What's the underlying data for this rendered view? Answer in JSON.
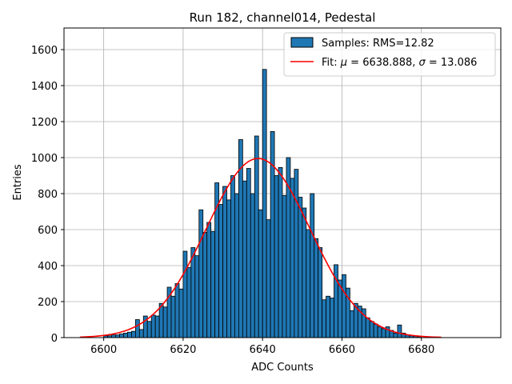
{
  "chart_data": {
    "type": "bar",
    "title": "Run 182, channel014, Pedestal",
    "xlabel": "ADC Counts",
    "ylabel": "Entries",
    "xlim": [
      6590,
      6700
    ],
    "ylim": [
      0,
      1720
    ],
    "xticks": [
      6600,
      6620,
      6640,
      6660,
      6680
    ],
    "yticks": [
      0,
      200,
      400,
      600,
      800,
      1000,
      1200,
      1400,
      1600
    ],
    "grid": true,
    "legend_position": "top-right",
    "colors": {
      "bars": "#1f77b4",
      "bar_edge": "#000000",
      "fit": "#ff0000",
      "grid": "#b0b0b0"
    },
    "series": [
      {
        "name": "Samples: RMS=12.82",
        "kind": "histogram",
        "bin_width": 1,
        "bins": [
          [
            6600,
            10
          ],
          [
            6601,
            10
          ],
          [
            6602,
            15
          ],
          [
            6603,
            15
          ],
          [
            6604,
            20
          ],
          [
            6605,
            25
          ],
          [
            6606,
            30
          ],
          [
            6607,
            35
          ],
          [
            6608,
            100
          ],
          [
            6609,
            45
          ],
          [
            6610,
            120
          ],
          [
            6611,
            90
          ],
          [
            6612,
            125
          ],
          [
            6613,
            120
          ],
          [
            6614,
            190
          ],
          [
            6615,
            170
          ],
          [
            6616,
            280
          ],
          [
            6617,
            230
          ],
          [
            6618,
            300
          ],
          [
            6619,
            270
          ],
          [
            6620,
            480
          ],
          [
            6621,
            390
          ],
          [
            6622,
            500
          ],
          [
            6623,
            455
          ],
          [
            6624,
            710
          ],
          [
            6625,
            585
          ],
          [
            6626,
            640
          ],
          [
            6627,
            590
          ],
          [
            6628,
            860
          ],
          [
            6629,
            740
          ],
          [
            6630,
            840
          ],
          [
            6631,
            765
          ],
          [
            6632,
            900
          ],
          [
            6633,
            800
          ],
          [
            6634,
            1100
          ],
          [
            6635,
            870
          ],
          [
            6636,
            940
          ],
          [
            6637,
            800
          ],
          [
            6638,
            1120
          ],
          [
            6639,
            710
          ],
          [
            6640,
            1490
          ],
          [
            6641,
            655
          ],
          [
            6642,
            1145
          ],
          [
            6643,
            900
          ],
          [
            6644,
            945
          ],
          [
            6645,
            790
          ],
          [
            6646,
            1000
          ],
          [
            6647,
            885
          ],
          [
            6648,
            935
          ],
          [
            6649,
            780
          ],
          [
            6650,
            720
          ],
          [
            6651,
            600
          ],
          [
            6652,
            800
          ],
          [
            6653,
            550
          ],
          [
            6654,
            500
          ],
          [
            6655,
            210
          ],
          [
            6656,
            230
          ],
          [
            6657,
            220
          ],
          [
            6658,
            405
          ],
          [
            6659,
            320
          ],
          [
            6660,
            350
          ],
          [
            6661,
            275
          ],
          [
            6662,
            150
          ],
          [
            6663,
            190
          ],
          [
            6664,
            175
          ],
          [
            6665,
            160
          ],
          [
            6666,
            110
          ],
          [
            6667,
            90
          ],
          [
            6668,
            75
          ],
          [
            6669,
            60
          ],
          [
            6670,
            50
          ],
          [
            6671,
            60
          ],
          [
            6672,
            40
          ],
          [
            6673,
            25
          ],
          [
            6674,
            70
          ],
          [
            6675,
            25
          ],
          [
            6676,
            15
          ],
          [
            6677,
            10
          ],
          [
            6678,
            8
          ],
          [
            6679,
            5
          ]
        ]
      },
      {
        "name": "Fit: μ = 6638.888, σ = 13.086",
        "kind": "gaussian-fit",
        "mu": 6638.888,
        "sigma": 13.086,
        "amplitude": 995,
        "x_range": [
          6594,
          6685
        ]
      }
    ],
    "legend": {
      "samples_label": "Samples: RMS=12.82",
      "fit_prefix": "Fit: ",
      "mu_symbol": "μ",
      "mu_text": " = 6638.888, ",
      "sigma_symbol": "σ",
      "sigma_text": " = 13.086"
    }
  }
}
